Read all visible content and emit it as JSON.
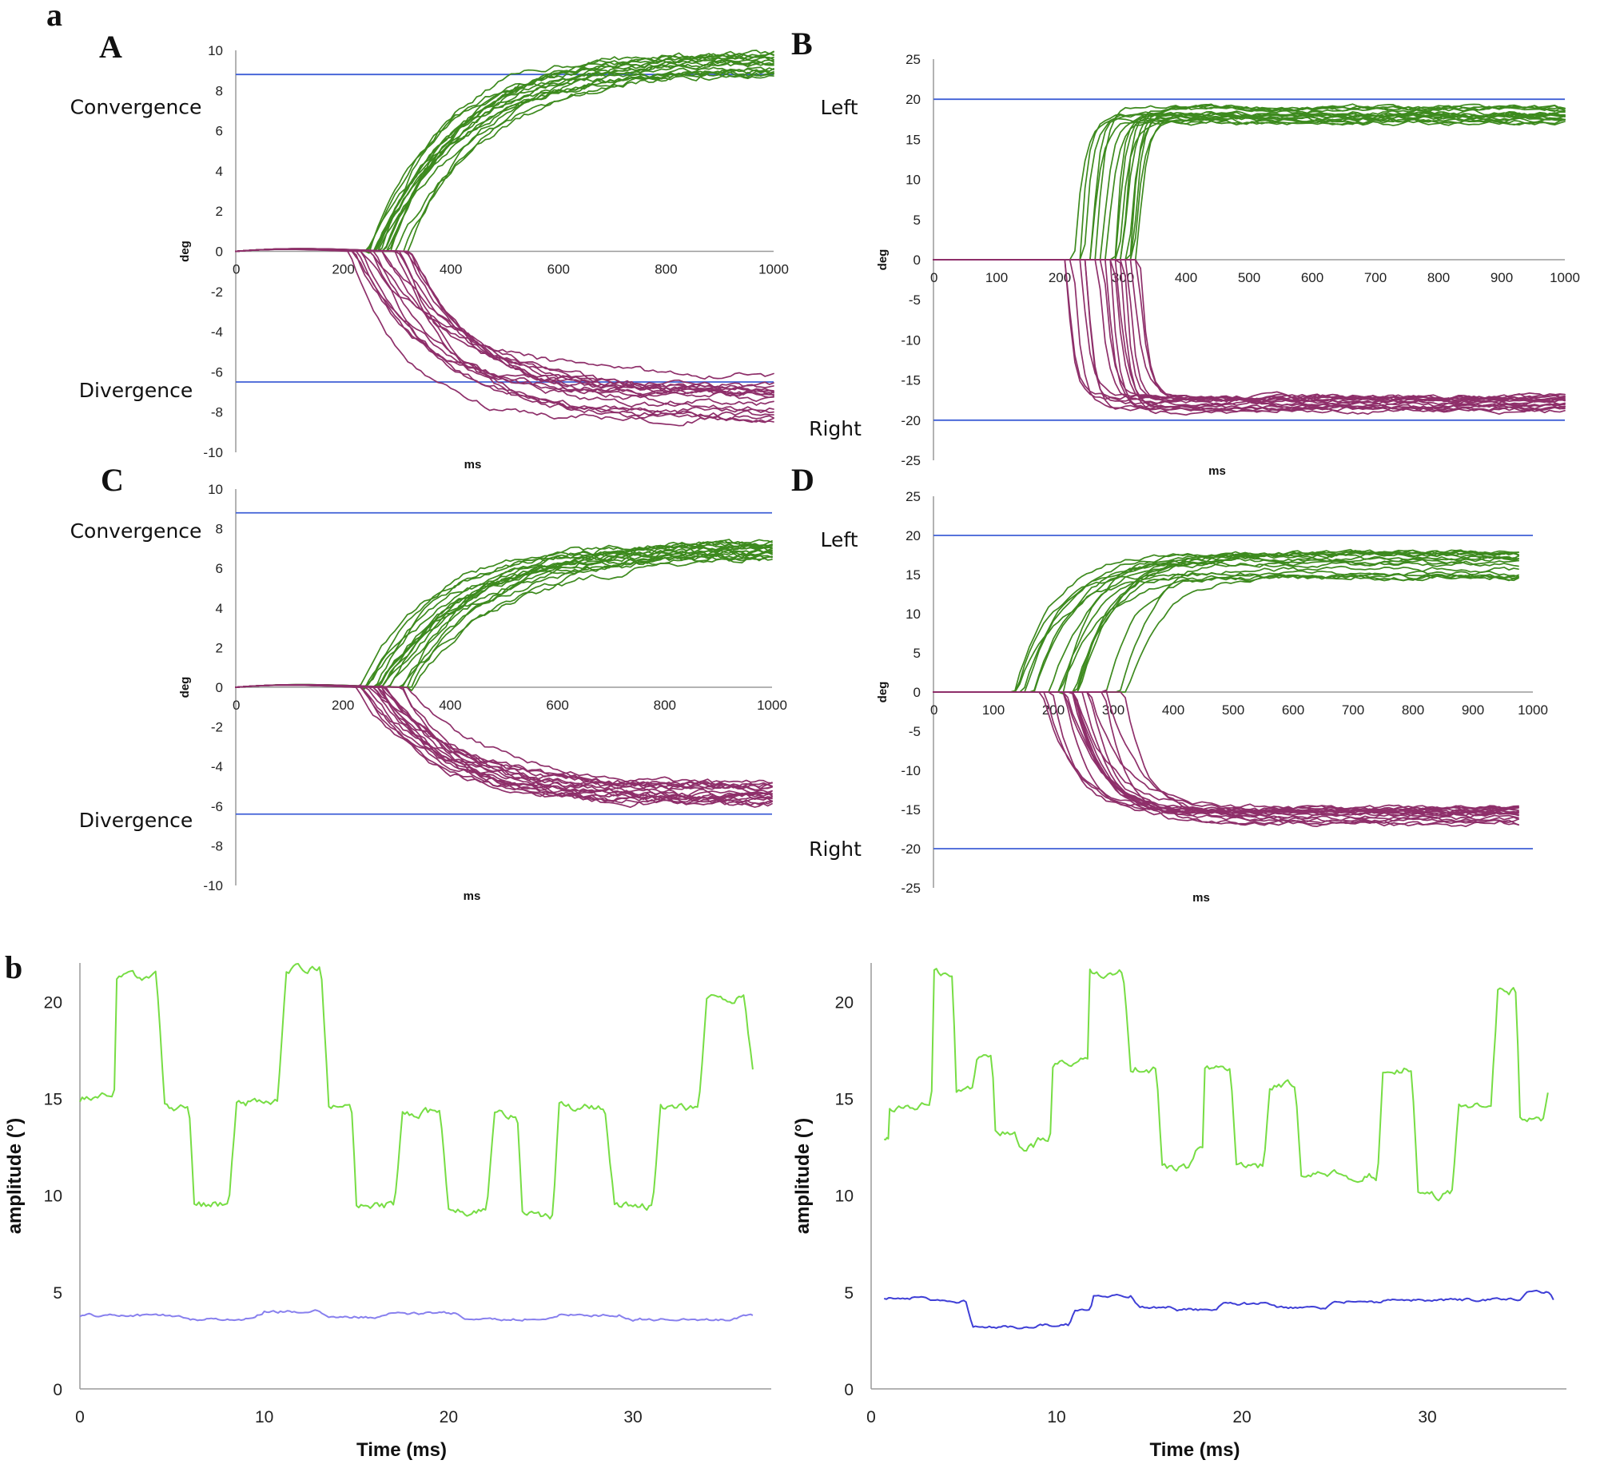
{
  "figure": {
    "part_a_label": "a",
    "part_b_label": "b"
  },
  "chart_data": [
    {
      "panel": "A",
      "type": "line",
      "xlabel": "ms",
      "ylabel": "deg",
      "xlim": [
        0,
        1000
      ],
      "ylim": [
        -10,
        10
      ],
      "xticks": [
        0,
        200,
        400,
        600,
        800,
        1000
      ],
      "yticks": [
        -10,
        -8,
        -6,
        -4,
        -2,
        0,
        2,
        4,
        6,
        8,
        10
      ],
      "labels_left": [
        {
          "text": "Convergence",
          "y": 7.2
        },
        {
          "text": "Divergence",
          "y": -6.9
        }
      ],
      "reference_lines": [
        8.8,
        -6.5
      ],
      "up": {
        "color": "#3d8a1e",
        "onset": [
          235,
          330
        ],
        "final": [
          8.8,
          10.0
        ],
        "tau": 150
      },
      "down": {
        "color": "#8e2f6a",
        "onset": [
          200,
          330
        ],
        "final": [
          -8.5,
          -6.0
        ],
        "tau": 140
      }
    },
    {
      "panel": "B",
      "type": "line",
      "xlabel": "ms",
      "ylabel": "deg",
      "xlim": [
        0,
        1000
      ],
      "ylim": [
        -25,
        25
      ],
      "xticks": [
        0,
        100,
        200,
        300,
        400,
        500,
        600,
        700,
        800,
        900,
        1000
      ],
      "yticks": [
        -25,
        -20,
        -15,
        -10,
        -5,
        0,
        5,
        10,
        15,
        20,
        25
      ],
      "labels_left": [
        {
          "text": "Left",
          "y": 19
        }
      ],
      "labels_right": [
        {
          "text": "Right",
          "y": -21
        }
      ],
      "reference_lines": [
        20,
        -20
      ],
      "up": {
        "color": "#3d8a1e",
        "onset": [
          200,
          340
        ],
        "final": [
          17,
          19
        ],
        "tau": 12
      },
      "down": {
        "color": "#8e2f6a",
        "onset": [
          200,
          330
        ],
        "final": [
          -19,
          -17
        ],
        "tau": 12
      }
    },
    {
      "panel": "C",
      "type": "line",
      "xlabel": "ms",
      "ylabel": "deg",
      "xlim": [
        0,
        1000
      ],
      "ylim": [
        -10,
        10
      ],
      "xticks": [
        0,
        200,
        400,
        600,
        800,
        1000
      ],
      "yticks": [
        -10,
        -8,
        -6,
        -4,
        -2,
        0,
        2,
        4,
        6,
        8,
        10
      ],
      "labels_left": [
        {
          "text": "Convergence",
          "y": 7.9
        },
        {
          "text": "Divergence",
          "y": -6.7
        }
      ],
      "reference_lines": [
        8.8,
        -6.4
      ],
      "up": {
        "color": "#3d8a1e",
        "onset": [
          230,
          330
        ],
        "final": [
          6.5,
          7.6
        ],
        "tau": 170
      },
      "down": {
        "color": "#8e2f6a",
        "onset": [
          220,
          320
        ],
        "final": [
          -6.0,
          -4.9
        ],
        "tau": 140
      }
    },
    {
      "panel": "D",
      "type": "line",
      "xlabel": "ms",
      "ylabel": "deg",
      "xlim": [
        0,
        1000
      ],
      "ylim": [
        -25,
        25
      ],
      "xticks": [
        0,
        100,
        200,
        300,
        400,
        500,
        600,
        700,
        800,
        900,
        1000
      ],
      "yticks": [
        -25,
        -20,
        -15,
        -10,
        -5,
        0,
        5,
        10,
        15,
        20,
        25
      ],
      "labels_left": [
        {
          "text": "Left",
          "y": 19.5
        }
      ],
      "labels_right": [
        {
          "text": "Right",
          "y": -20
        }
      ],
      "reference_lines": [
        20,
        -20
      ],
      "up": {
        "color": "#3d8a1e",
        "onset": [
          130,
          330
        ],
        "final": [
          14.5,
          18
        ],
        "tau": 60
      },
      "down": {
        "color": "#8e2f6a",
        "onset": [
          160,
          330
        ],
        "final": [
          -17,
          -14.5
        ],
        "tau": 50
      }
    },
    {
      "panel": "b-left",
      "type": "line",
      "xlabel": "Time (ms)",
      "ylabel": "amplitude (°)",
      "xlim": [
        0,
        37.5
      ],
      "ylim": [
        0,
        22
      ],
      "xticks": [
        0,
        10,
        20,
        30
      ],
      "yticks": [
        0,
        5,
        10,
        15,
        20
      ],
      "series": [
        {
          "color": "#77dd44",
          "levels": [
            [
              0,
              15.0
            ],
            [
              1.2,
              15.2
            ],
            [
              2.0,
              21.3
            ],
            [
              4.6,
              14.6
            ],
            [
              6.2,
              9.5
            ],
            [
              8.5,
              14.8
            ],
            [
              11.2,
              21.7
            ],
            [
              13.5,
              14.5
            ],
            [
              15.0,
              9.5
            ],
            [
              17.5,
              14.3
            ],
            [
              20.0,
              9.2
            ],
            [
              22.5,
              14.2
            ],
            [
              24.0,
              9.0
            ],
            [
              26.0,
              14.6
            ],
            [
              29.0,
              9.5
            ],
            [
              31.5,
              14.5
            ],
            [
              34.0,
              20.2
            ],
            [
              36.5,
              16.5
            ]
          ]
        },
        {
          "color": "#8880ee",
          "levels": [
            [
              0,
              3.8
            ],
            [
              6.0,
              3.6
            ],
            [
              10.0,
              4.0
            ],
            [
              13.5,
              3.7
            ],
            [
              17.0,
              3.9
            ],
            [
              21.0,
              3.6
            ],
            [
              26.0,
              3.8
            ],
            [
              30.0,
              3.6
            ],
            [
              36.5,
              3.8
            ]
          ]
        }
      ]
    },
    {
      "panel": "b-right",
      "type": "line",
      "xlabel": "Time (ms)",
      "ylabel": "amplitude (°)",
      "xlim": [
        0,
        37.5
      ],
      "ylim": [
        0,
        22
      ],
      "xticks": [
        0,
        10,
        20,
        30
      ],
      "yticks": [
        0,
        5,
        10,
        15,
        20
      ],
      "series": [
        {
          "color": "#77dd44",
          "levels": [
            [
              0.7,
              13.0
            ],
            [
              1.0,
              14.5
            ],
            [
              2.6,
              14.8
            ],
            [
              3.4,
              21.5
            ],
            [
              4.6,
              15.5
            ],
            [
              5.7,
              17.0
            ],
            [
              6.7,
              13.2
            ],
            [
              8.0,
              12.5
            ],
            [
              9.0,
              13.0
            ],
            [
              9.8,
              16.8
            ],
            [
              11.3,
              17.0
            ],
            [
              11.8,
              21.5
            ],
            [
              14.0,
              16.5
            ],
            [
              15.7,
              11.5
            ],
            [
              17.5,
              12.3
            ],
            [
              18.0,
              16.5
            ],
            [
              19.7,
              11.5
            ],
            [
              21.5,
              15.7
            ],
            [
              23.2,
              11.2
            ],
            [
              26.0,
              11.0
            ],
            [
              27.6,
              16.5
            ],
            [
              29.5,
              10.0
            ],
            [
              31.7,
              14.5
            ],
            [
              33.8,
              20.5
            ],
            [
              35.0,
              14.0
            ],
            [
              36.5,
              15.3
            ]
          ]
        },
        {
          "color": "#3f3fd6",
          "levels": [
            [
              0.7,
              4.7
            ],
            [
              3.2,
              4.5
            ],
            [
              5.5,
              3.2
            ],
            [
              9.0,
              3.3
            ],
            [
              11.0,
              4.1
            ],
            [
              12.0,
              4.8
            ],
            [
              14.5,
              4.2
            ],
            [
              16.5,
              4.1
            ],
            [
              19.0,
              4.4
            ],
            [
              22.0,
              4.2
            ],
            [
              25.0,
              4.5
            ],
            [
              28.0,
              4.6
            ],
            [
              32.5,
              4.6
            ],
            [
              35.5,
              5.0
            ],
            [
              36.8,
              4.6
            ]
          ]
        }
      ]
    }
  ]
}
